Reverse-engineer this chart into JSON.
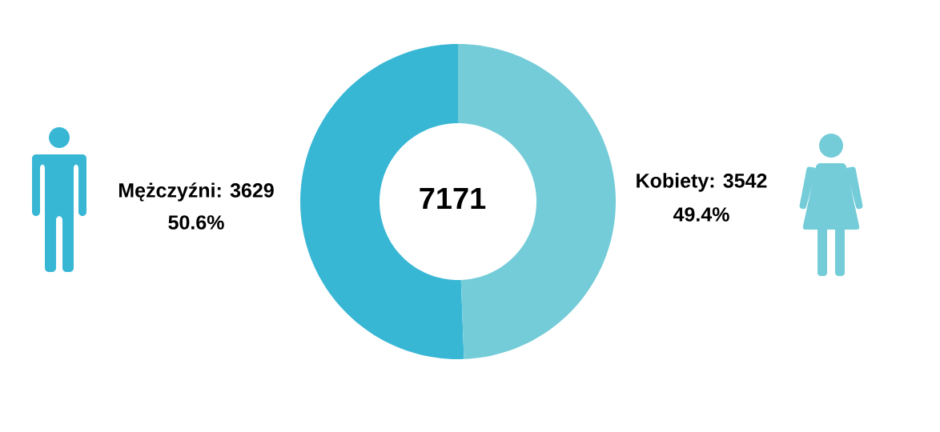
{
  "chart_data": {
    "type": "donut",
    "categories": [
      "Mężczyźni",
      "Kobiety"
    ],
    "values": [
      3629,
      3542
    ],
    "colors": [
      "#38b7d5",
      "#74ccd8"
    ],
    "value_labels": [
      ": 3629",
      ": 3542"
    ],
    "annotations": [
      "7171",
      "50.6%",
      "49.4%"
    ]
  }
}
